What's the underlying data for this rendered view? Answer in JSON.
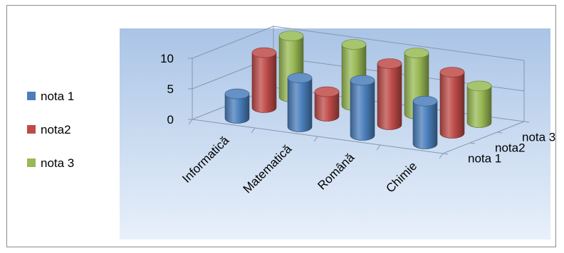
{
  "chart_data": {
    "type": "bar",
    "categories": [
      "Informatică",
      "Matematică",
      "Română",
      "Chimie"
    ],
    "series": [
      {
        "name": "nota 1",
        "values": [
          4,
          8,
          9,
          7
        ]
      },
      {
        "name": "nota2",
        "values": [
          9,
          4,
          10,
          10
        ]
      },
      {
        "name": "nota 3",
        "values": [
          10,
          10,
          10,
          6
        ]
      }
    ],
    "ylim": [
      0,
      10
    ],
    "yticks": [
      "0",
      "5",
      "10"
    ],
    "depth_labels": [
      "nota 1",
      "nota2",
      "nota 3"
    ],
    "legend_position": "left",
    "colors": [
      "#4a7ebb",
      "#be4b48",
      "#98b954"
    ],
    "grid": true
  }
}
